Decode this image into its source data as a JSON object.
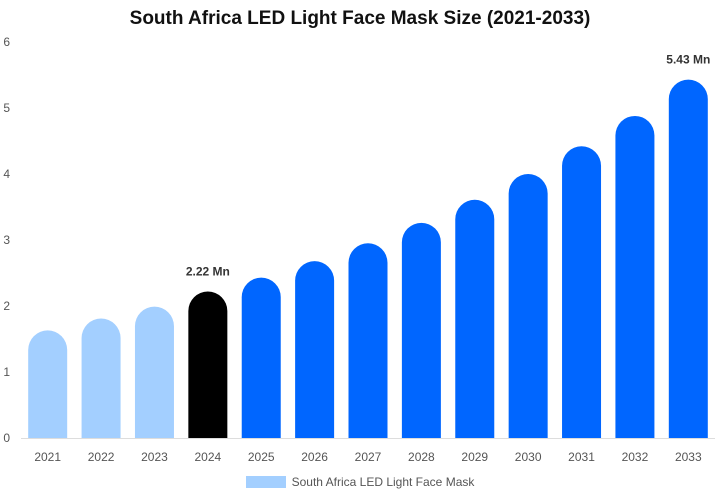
{
  "chart_data": {
    "type": "bar",
    "title": "South Africa LED Light Face Mask Size (2021-2033)",
    "xlabel": "",
    "ylabel": "",
    "categories": [
      "2021",
      "2022",
      "2023",
      "2024",
      "2025",
      "2026",
      "2027",
      "2028",
      "2029",
      "2030",
      "2031",
      "2032",
      "2033"
    ],
    "series": [
      {
        "name": "South Africa LED Light Face Mask",
        "values": [
          1.63,
          1.81,
          1.99,
          2.22,
          2.43,
          2.68,
          2.95,
          3.26,
          3.61,
          4.0,
          4.42,
          4.88,
          5.43
        ]
      }
    ],
    "ylim": [
      0,
      6
    ],
    "yticks": [
      0,
      1,
      2,
      3,
      4,
      5,
      6
    ],
    "data_labels": [
      {
        "category": "2024",
        "text": "2.22 Mn"
      },
      {
        "category": "2033",
        "text": "5.43 Mn"
      }
    ],
    "colors": {
      "historical": "#a3cfff",
      "base_year": "#000000",
      "forecast": "#0066ff"
    },
    "grid": false,
    "legend_position": "bottom-center"
  }
}
